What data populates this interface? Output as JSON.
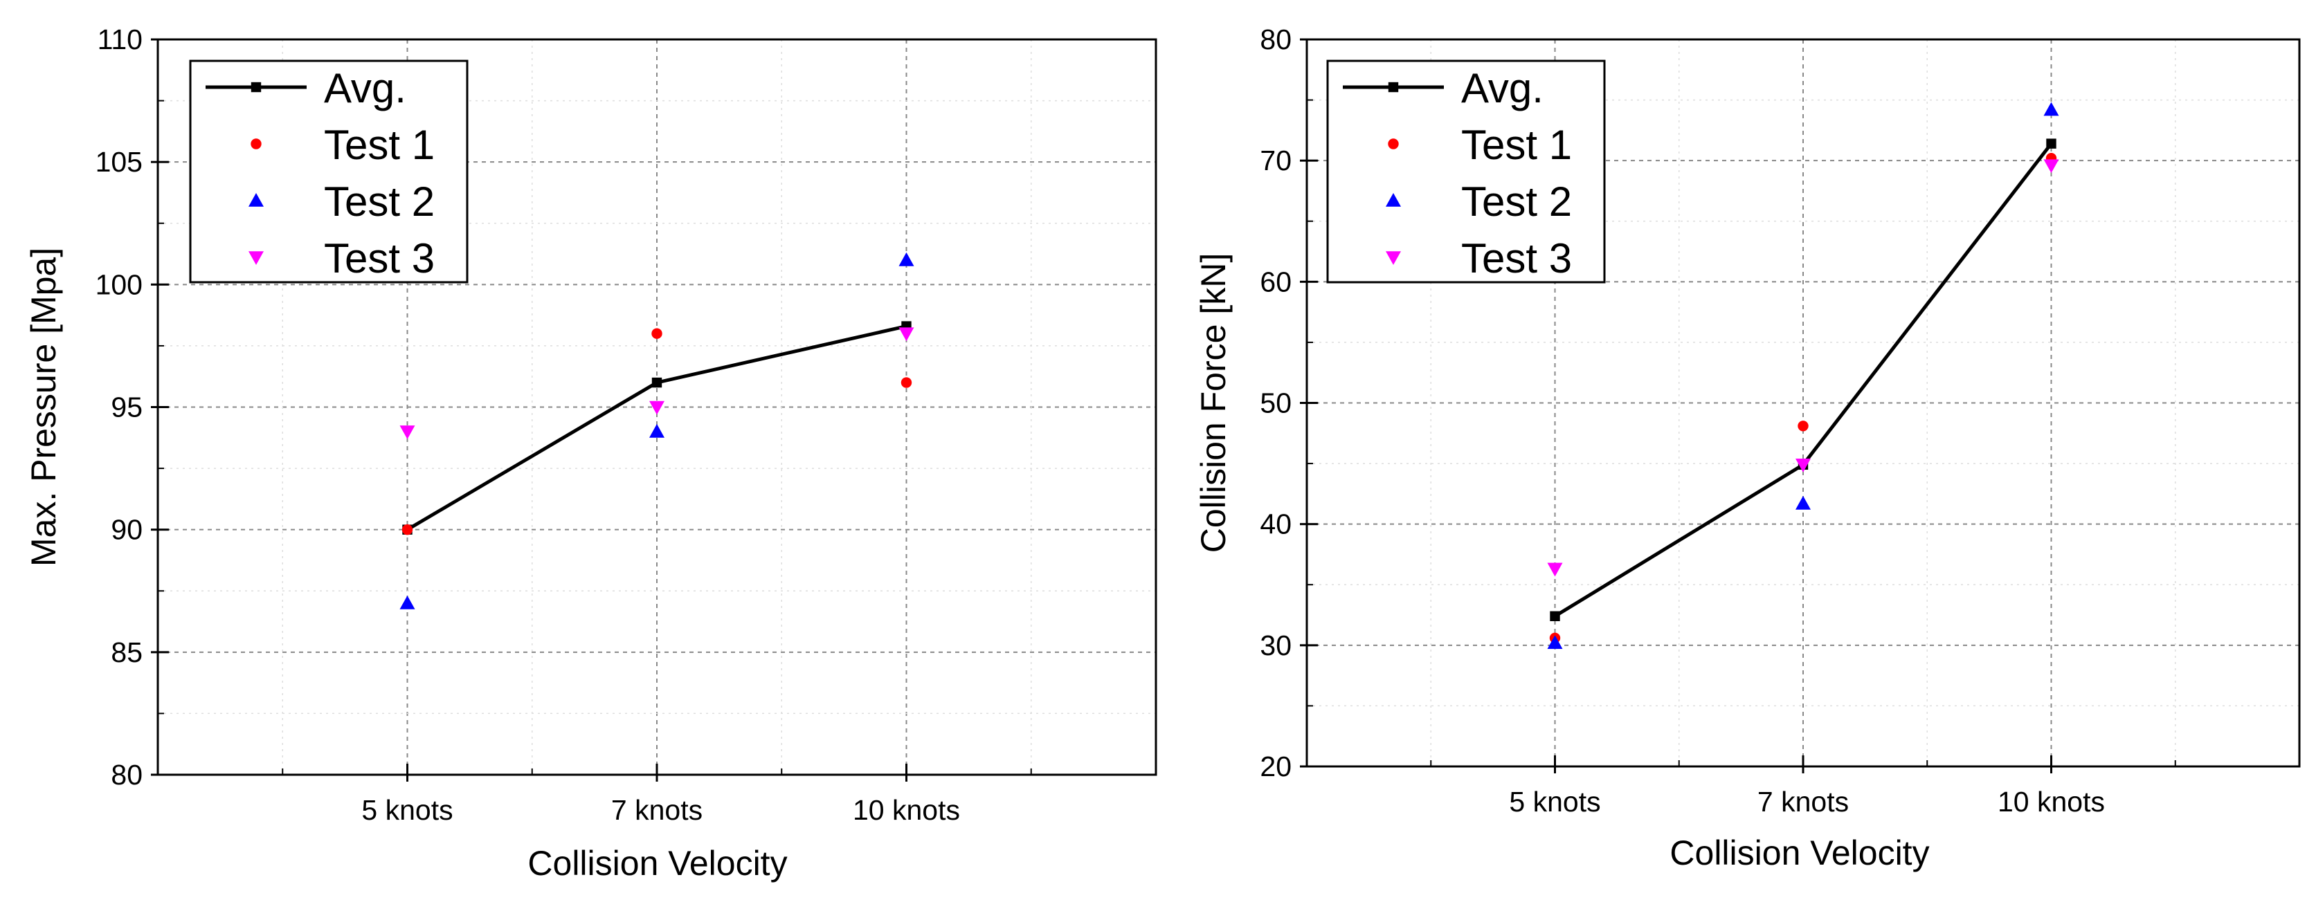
{
  "chart_data": [
    {
      "type": "line",
      "title": "",
      "xlabel": "Collision Velocity",
      "ylabel": "Max. Pressure [Mpa]",
      "categories": [
        "5 knots",
        "7 knots",
        "10 knots"
      ],
      "ylim": [
        80,
        110
      ],
      "yticks": [
        80,
        85,
        90,
        95,
        100,
        105,
        110
      ],
      "grid": true,
      "legend_position": "top-left",
      "series": [
        {
          "name": "Avg.",
          "values": [
            90,
            96,
            98.3
          ],
          "style": "line-square",
          "color": "#000000"
        },
        {
          "name": "Test 1",
          "values": [
            90,
            98,
            96
          ],
          "style": "circle",
          "color": "#ff0000"
        },
        {
          "name": "Test 2",
          "values": [
            87,
            94,
            101
          ],
          "style": "triangle-up",
          "color": "#0000ff"
        },
        {
          "name": "Test 3",
          "values": [
            94,
            95,
            98
          ],
          "style": "triangle-down",
          "color": "#ff00ff"
        }
      ]
    },
    {
      "type": "line",
      "title": "",
      "xlabel": "Collision Velocity",
      "ylabel": "Collision Force [kN]",
      "categories": [
        "5 knots",
        "7 knots",
        "10 knots"
      ],
      "ylim": [
        20,
        80
      ],
      "yticks": [
        20,
        30,
        40,
        50,
        60,
        70,
        80
      ],
      "grid": true,
      "legend_position": "top-left",
      "series": [
        {
          "name": "Avg.",
          "values": [
            32.4,
            44.9,
            71.4
          ],
          "style": "line-square",
          "color": "#000000"
        },
        {
          "name": "Test 1",
          "values": [
            30.6,
            48.1,
            70.2
          ],
          "style": "circle",
          "color": "#ff0000"
        },
        {
          "name": "Test 2",
          "values": [
            30.2,
            41.7,
            74.2
          ],
          "style": "triangle-up",
          "color": "#0000ff"
        },
        {
          "name": "Test 3",
          "values": [
            36.3,
            44.9,
            69.6
          ],
          "style": "triangle-down",
          "color": "#ff00ff"
        }
      ]
    }
  ]
}
